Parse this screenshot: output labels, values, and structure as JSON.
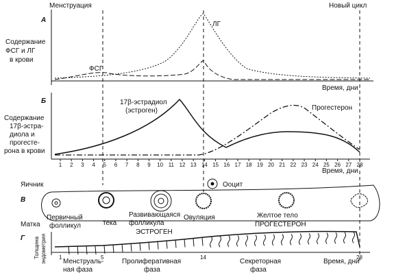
{
  "header": {
    "menstruation": "Менструация",
    "new_cycle": "Новый цикл"
  },
  "panel_a": {
    "letter": "А",
    "y_label": [
      "Содержание",
      "ФСГ и ЛГ",
      "в крови"
    ],
    "lh": "ЛГ",
    "fsh": "ФСГ",
    "x_label": "Время, дни"
  },
  "panel_b": {
    "letter": "Б",
    "y_label": [
      "Содержание",
      "17β-эстра-",
      "диола и",
      "прогесте-",
      "рона в крови"
    ],
    "estradiol": [
      "17β-эстрадиол",
      "(эстроген)"
    ],
    "progesterone": "Прогестерон",
    "x_label": "Время, дни",
    "days": [
      1,
      2,
      3,
      4,
      5,
      6,
      7,
      8,
      9,
      10,
      11,
      12,
      13,
      14,
      15,
      16,
      17,
      18,
      19,
      20,
      21,
      22,
      23,
      24,
      25,
      26,
      27,
      28
    ]
  },
  "ovary": {
    "title": "Яичник",
    "letter": "В",
    "oocyte": "Ооцит",
    "primary": [
      "Первичный",
      "фолликул"
    ],
    "developing": [
      "Развивающаяся",
      "фолликула"
    ],
    "theca": "тека",
    "estrogen": "ЭСТРОГЕН",
    "ovulation": "Овуляция",
    "corpus_luteum": "Желтое тело",
    "progesterone": "ПРОГЕСТЕРОН"
  },
  "uterus": {
    "title": "Матка",
    "letter": "Г",
    "y_label": [
      "Толщина",
      "эндометрия"
    ],
    "day_marks": [
      "1",
      "5",
      "14",
      "28"
    ],
    "menstrual": [
      "Менструаль-",
      "ная фаза"
    ],
    "proliferative": [
      "Пролиферативная",
      "фаза"
    ],
    "secretory": [
      "Секреторная",
      "фаза"
    ],
    "x_label": "Время, дни"
  }
}
